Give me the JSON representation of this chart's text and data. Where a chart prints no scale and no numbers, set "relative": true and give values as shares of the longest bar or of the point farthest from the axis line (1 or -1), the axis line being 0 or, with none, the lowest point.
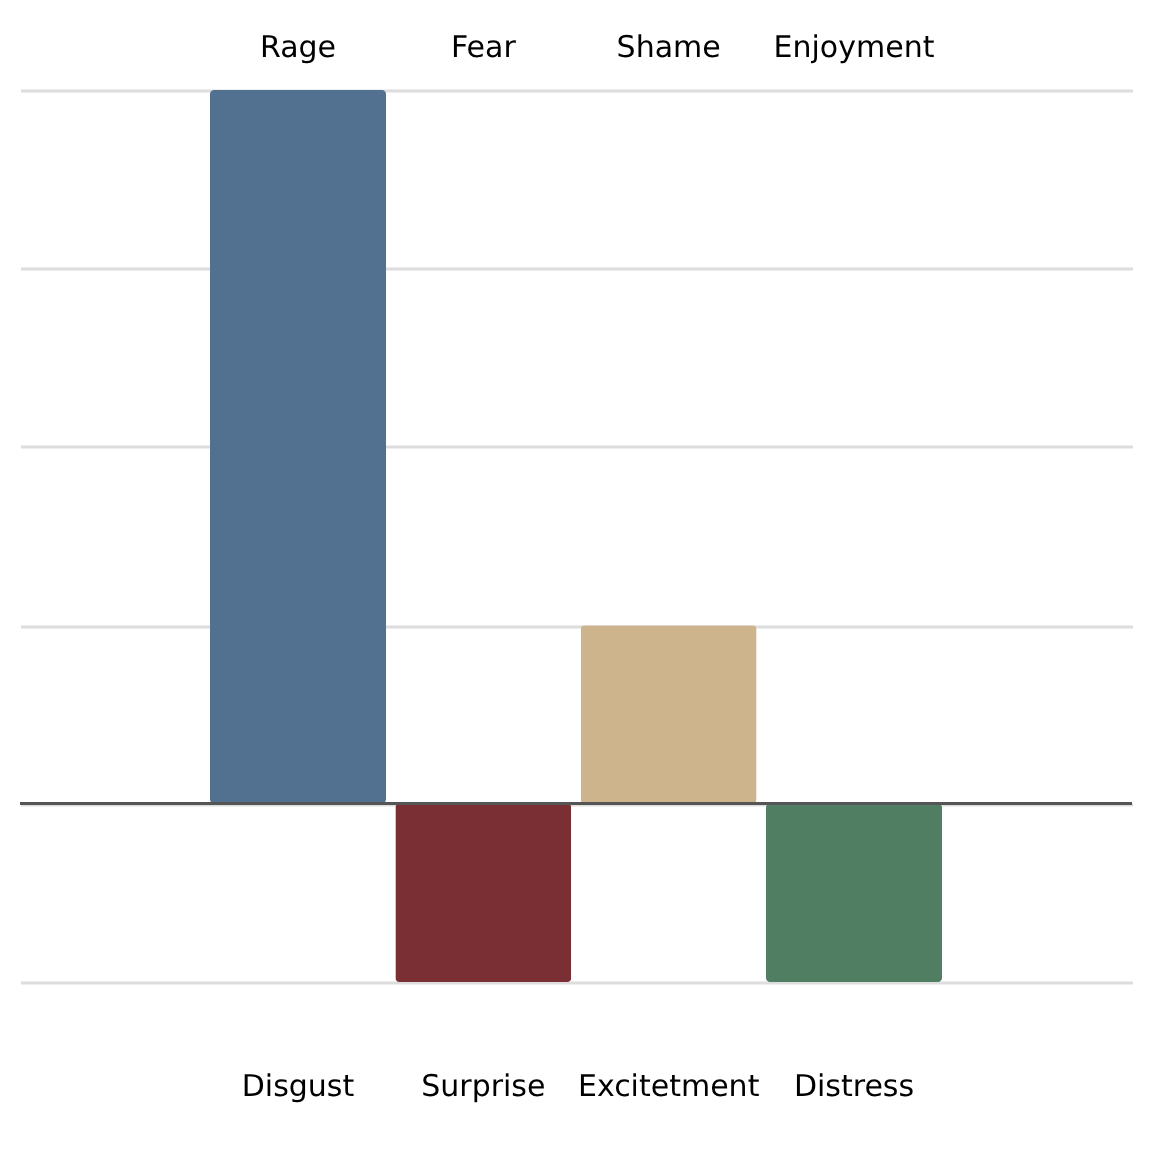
{
  "chart_data": {
    "type": "bar",
    "relative": true,
    "grid": "y",
    "categories": [
      "Rage",
      "Fear",
      "Shame",
      "Enjoyment"
    ],
    "values": [
      1,
      -0.25,
      0.25,
      -0.25
    ],
    "colors": [
      "#52708f",
      "#7a2f35",
      "#cdb48c",
      "#4f7e62"
    ],
    "annotations": [
      "Disgust",
      "Surprise",
      "Excitetment",
      "Distress"
    ]
  }
}
